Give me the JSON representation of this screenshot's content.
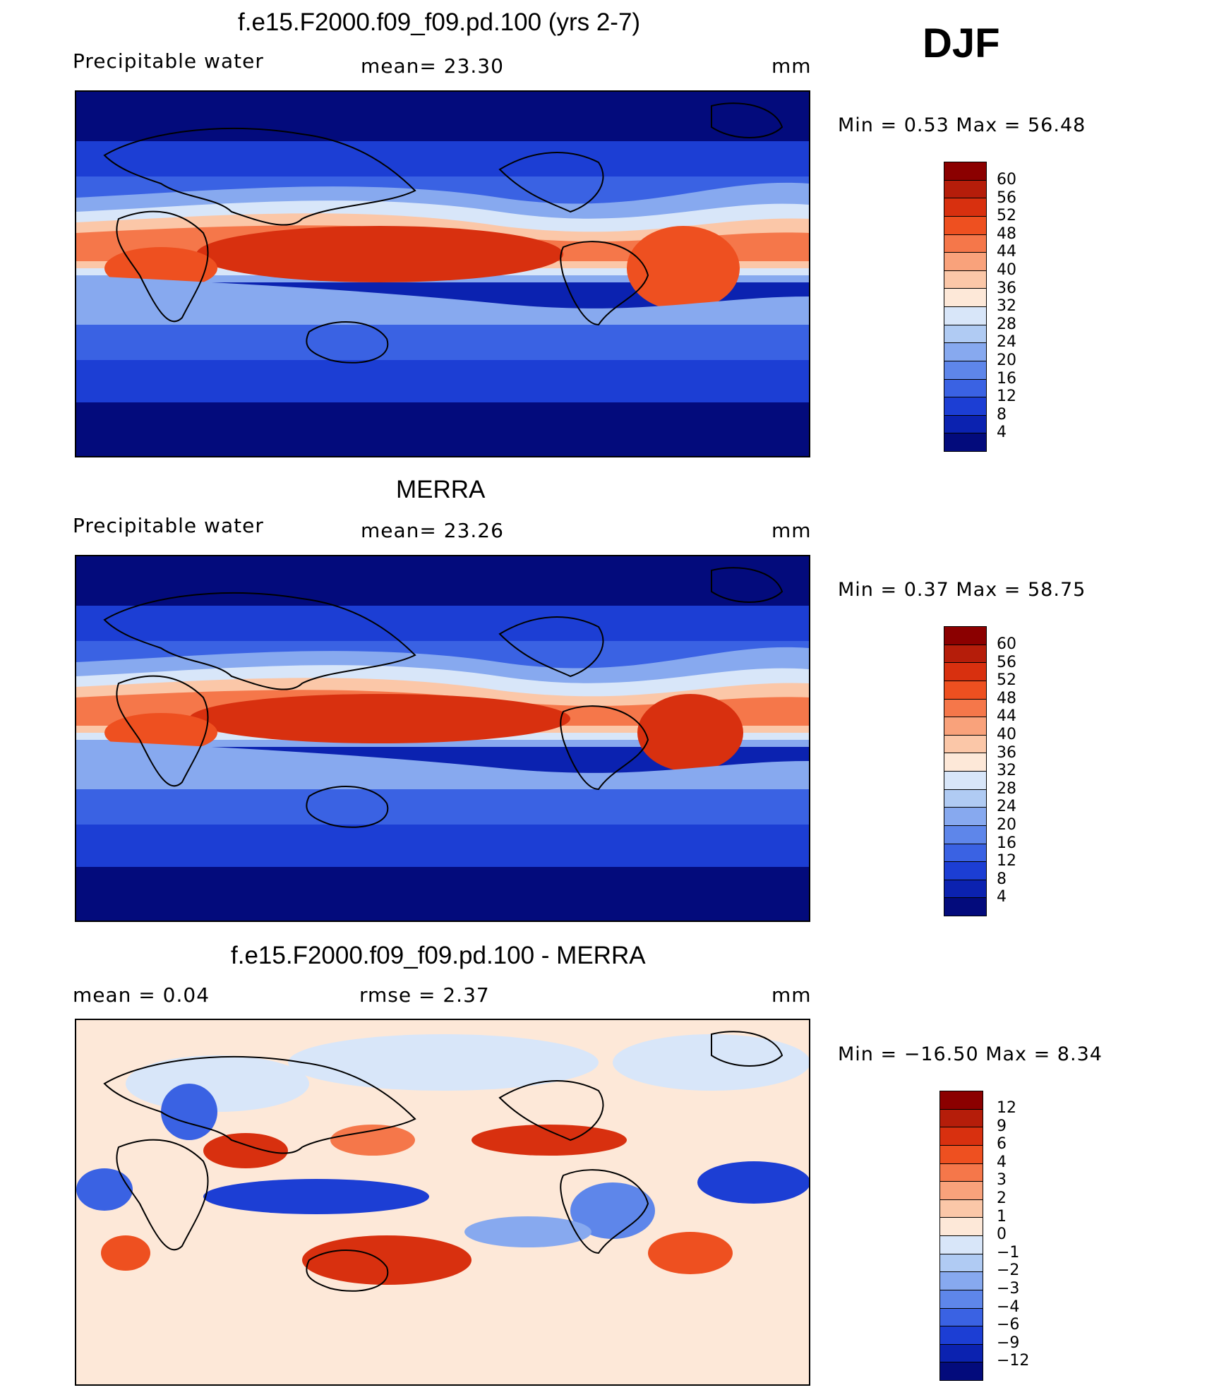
{
  "season": "DJF",
  "panels": [
    {
      "title": "f.e15.F2000.f09_f09.pd.100 (yrs 2-7)",
      "left_label": "Precipitable  water",
      "mid_label": "mean=   23.30",
      "units": "mm",
      "minmax": "Min  =     0.53  Max  =     56.48",
      "colorbar_labels": [
        "60",
        "56",
        "52",
        "48",
        "44",
        "40",
        "36",
        "32",
        "28",
        "24",
        "20",
        "16",
        "12",
        "8",
        "4"
      ],
      "colors": [
        "#8b0000",
        "#b51d0a",
        "#d8300f",
        "#ee5020",
        "#f5774a",
        "#f9a27b",
        "#fbc7a8",
        "#fde8d8",
        "#d8e6f9",
        "#b0cbf3",
        "#87a9ef",
        "#5e86ea",
        "#3a62e3",
        "#1c3ed4",
        "#0b22b0",
        "#030b7c"
      ]
    },
    {
      "title": "MERRA",
      "left_label": "Precipitable  water",
      "mid_label": "mean=   23.26",
      "units": "mm",
      "minmax": "Min  =     0.37  Max  =     58.75",
      "colorbar_labels": [
        "60",
        "56",
        "52",
        "48",
        "44",
        "40",
        "36",
        "32",
        "28",
        "24",
        "20",
        "16",
        "12",
        "8",
        "4"
      ],
      "colors": [
        "#8b0000",
        "#b51d0a",
        "#d8300f",
        "#ee5020",
        "#f5774a",
        "#f9a27b",
        "#fbc7a8",
        "#fde8d8",
        "#d8e6f9",
        "#b0cbf3",
        "#87a9ef",
        "#5e86ea",
        "#3a62e3",
        "#1c3ed4",
        "#0b22b0",
        "#030b7c"
      ]
    },
    {
      "title": "f.e15.F2000.f09_f09.pd.100 - MERRA",
      "left_label": "mean  =     0.04",
      "mid_label": "rmse  =     2.37",
      "units": "mm",
      "minmax": "Min  = −16.50  Max  =      8.34",
      "colorbar_labels": [
        "12",
        "9",
        "6",
        "4",
        "3",
        "2",
        "1",
        "0",
        "−1",
        "−2",
        "−3",
        "−4",
        "−6",
        "−9",
        "−12"
      ],
      "colors": [
        "#8b0000",
        "#b51d0a",
        "#d8300f",
        "#ee5020",
        "#f5774a",
        "#f9a27b",
        "#fbc7a8",
        "#fde8d8",
        "#d8e6f9",
        "#b0cbf3",
        "#87a9ef",
        "#5e86ea",
        "#3a62e3",
        "#1c3ed4",
        "#0b22b0",
        "#030b7c"
      ]
    }
  ]
}
